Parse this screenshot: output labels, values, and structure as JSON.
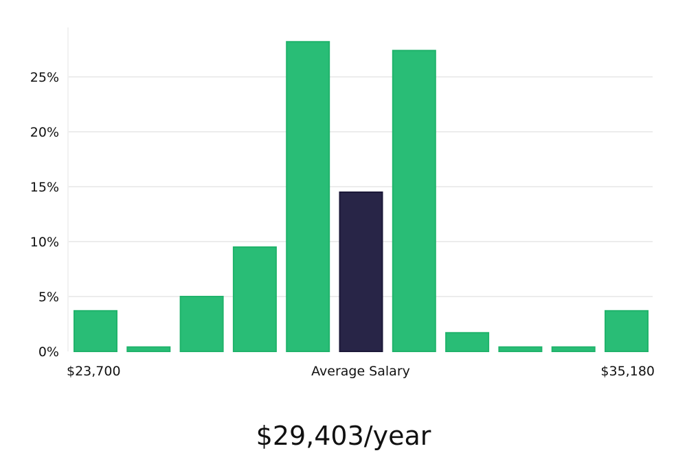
{
  "chart_data": {
    "type": "bar",
    "title": "",
    "xlabel": "Average Salary",
    "ylabel": "",
    "x_min_label": "$23,700",
    "x_max_label": "$35,180",
    "ylim": [
      0,
      29.5
    ],
    "yticks": [
      0,
      5,
      10,
      15,
      20,
      25
    ],
    "ytick_labels": [
      "0%",
      "5%",
      "10%",
      "15%",
      "20%",
      "25%"
    ],
    "values": [
      3.7,
      0.4,
      5.0,
      9.5,
      28.2,
      14.5,
      27.4,
      1.7,
      0.4,
      0.4,
      3.7
    ],
    "highlight_index": 5,
    "grid": true,
    "colors": {
      "bar": "#29bd76",
      "bar_stroke": "#20b36b",
      "highlight": "#282547",
      "highlight_stroke": "#1b1838"
    }
  },
  "summary": {
    "salary_text": "$29,403/year"
  }
}
